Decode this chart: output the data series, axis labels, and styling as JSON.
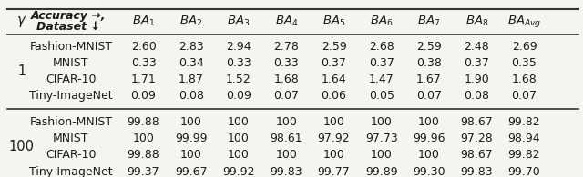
{
  "header_gamma": "γ",
  "header_accuracy": "Accuracy →,",
  "header_dataset": "Dataset ↓",
  "col_headers": [
    "BA_{1}",
    "BA_{2}",
    "BA_{3}",
    "BA_{4}",
    "BA_{5}",
    "BA_{6}",
    "BA_{7}",
    "BA_{8}",
    "BA_{Avg}"
  ],
  "col_headers_display": [
    "$BA_1$",
    "$BA_2$",
    "$BA_3$",
    "$BA_4$",
    "$BA_5$",
    "$BA_6$",
    "$BA_7$",
    "$BA_8$",
    "$BA_{Avg}$"
  ],
  "gamma_values": [
    "1",
    "100"
  ],
  "datasets": [
    "Fashion-MNIST",
    "MNIST",
    "CIFAR-10",
    "Tiny-ImageNet"
  ],
  "data": {
    "1": {
      "Fashion-MNIST": [
        "2.60",
        "2.83",
        "2.94",
        "2.78",
        "2.59",
        "2.68",
        "2.59",
        "2.48",
        "2.69"
      ],
      "MNIST": [
        "0.33",
        "0.34",
        "0.33",
        "0.33",
        "0.37",
        "0.37",
        "0.38",
        "0.37",
        "0.35"
      ],
      "CIFAR-10": [
        "1.71",
        "1.87",
        "1.52",
        "1.68",
        "1.64",
        "1.47",
        "1.67",
        "1.90",
        "1.68"
      ],
      "Tiny-ImageNet": [
        "0.09",
        "0.08",
        "0.09",
        "0.07",
        "0.06",
        "0.05",
        "0.07",
        "0.08",
        "0.07"
      ]
    },
    "100": {
      "Fashion-MNIST": [
        "99.88",
        "100",
        "100",
        "100",
        "100",
        "100",
        "100",
        "98.67",
        "99.82"
      ],
      "MNIST": [
        "100",
        "99.99",
        "100",
        "98.61",
        "97.92",
        "97.73",
        "99.96",
        "97.28",
        "98.94"
      ],
      "CIFAR-10": [
        "99.88",
        "100",
        "100",
        "100",
        "100",
        "100",
        "100",
        "98.67",
        "99.82"
      ],
      "Tiny-ImageNet": [
        "99.37",
        "99.67",
        "99.92",
        "99.83",
        "99.77",
        "99.89",
        "99.30",
        "99.83",
        "99.70"
      ]
    }
  },
  "background_color": "#f5f5f0",
  "text_color": "#1a1a1a",
  "line_color": "#333333",
  "fontsize_header": 9.5,
  "fontsize_data": 9.0,
  "fontsize_gamma": 11
}
